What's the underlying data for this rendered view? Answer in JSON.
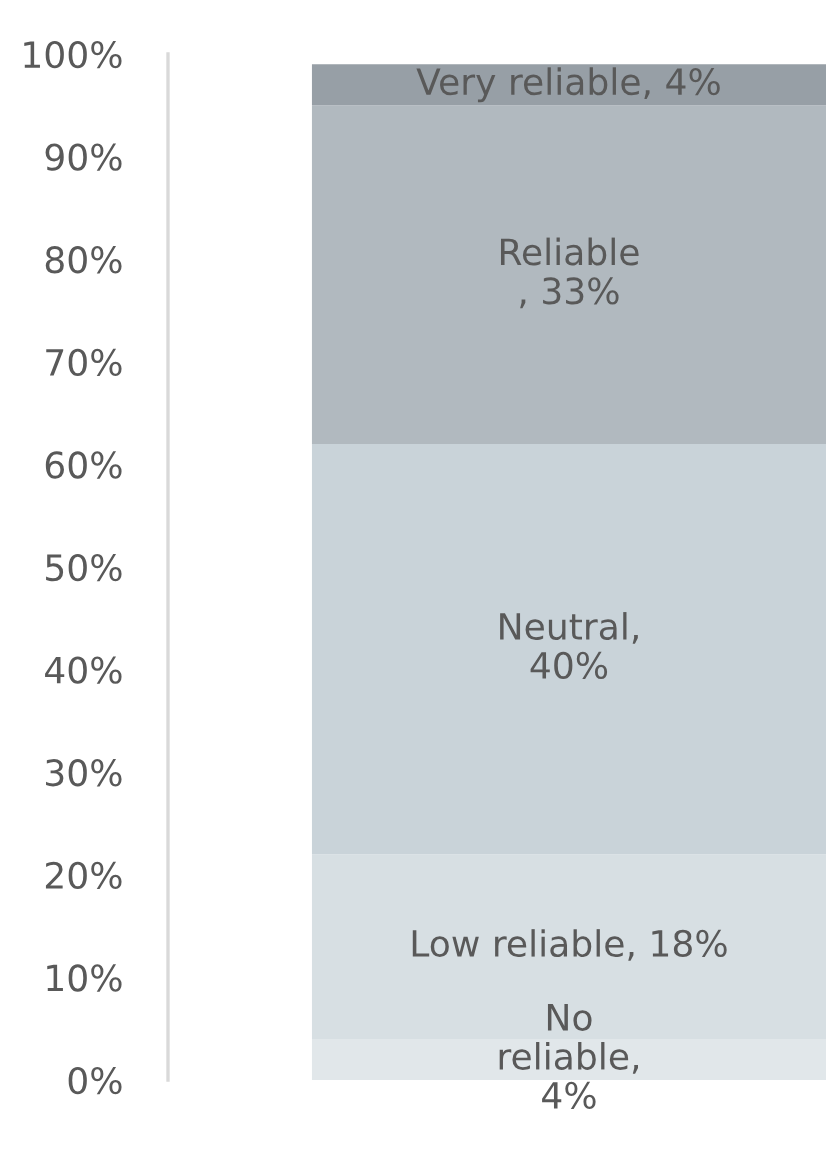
{
  "chart_data": {
    "type": "bar",
    "stacked": true,
    "categories": [
      null
    ],
    "ylim": [
      0,
      100
    ],
    "yticks": [
      {
        "value": 0,
        "label": "0%"
      },
      {
        "value": 10,
        "label": "10%"
      },
      {
        "value": 20,
        "label": "20%"
      },
      {
        "value": 30,
        "label": "30%"
      },
      {
        "value": 40,
        "label": "40%"
      },
      {
        "value": 50,
        "label": "50%"
      },
      {
        "value": 60,
        "label": "60%"
      },
      {
        "value": 70,
        "label": "70%"
      },
      {
        "value": 80,
        "label": "80%"
      },
      {
        "value": 90,
        "label": "90%"
      },
      {
        "value": 100,
        "label": "100%"
      }
    ],
    "series": [
      {
        "name": "No\nreliable",
        "color": "#e1e7ea",
        "values": [
          4
        ],
        "value_labels": [
          ",\n4%"
        ]
      },
      {
        "name": "Low reliable",
        "color": "#d7dfe3",
        "values": [
          18
        ],
        "value_labels": [
          ", 18%"
        ]
      },
      {
        "name": "Neutral",
        "color": "#c9d3d9",
        "values": [
          40
        ],
        "value_labels": [
          ",\n40%"
        ]
      },
      {
        "name": "Reliable",
        "color": "#b1b9bf",
        "values": [
          33
        ],
        "value_labels": [
          "\n, 33%"
        ]
      },
      {
        "name": "Very reliable",
        "color": "#979fa6",
        "values": [
          4
        ],
        "value_labels": [
          ", 4%"
        ]
      }
    ]
  }
}
